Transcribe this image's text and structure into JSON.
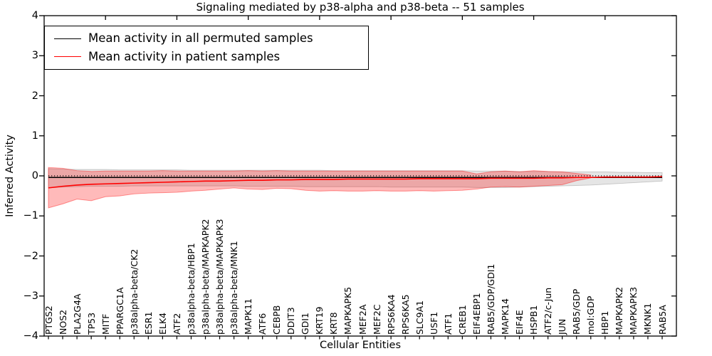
{
  "title": "Signaling mediated by p38-alpha and p38-beta -- 51 samples",
  "axes": {
    "ylabel": "Inferred Activity",
    "xlabel": "Cellular Entities",
    "ytick_values": [
      4,
      3,
      2,
      1,
      0,
      -1,
      -2,
      -3,
      -4
    ],
    "ytick_labels": [
      "4",
      "3",
      "2",
      "1",
      "0",
      "−1",
      "−2",
      "−3",
      "−4"
    ]
  },
  "legend": {
    "items": [
      {
        "label": "Mean activity in all permuted samples",
        "color": "#000000"
      },
      {
        "label": "Mean activity in patient samples",
        "color": "#ff0000"
      }
    ]
  },
  "chart_data": {
    "type": "line",
    "title": "Signaling mediated by p38-alpha and p38-beta -- 51 samples",
    "xlabel": "Cellular Entities",
    "ylabel": "Inferred Activity",
    "ylim": [
      -4,
      4
    ],
    "grid": false,
    "legend_position": "upper left",
    "categories": [
      "PTGS2",
      "NOS2",
      "PLA2G4A",
      "TP53",
      "MITF",
      "PPARGC1A",
      "p38alpha-beta/CK2",
      "ESR1",
      "ELK4",
      "ATF2",
      "p38alpha-beta/HBP1",
      "p38alpha-beta/MAPKAPK2",
      "p38alpha-beta/MAPKAPK3",
      "p38alpha-beta/MNK1",
      "MAPK11",
      "ATF6",
      "CEBPB",
      "DDIT3",
      "GDI1",
      "KRT19",
      "KRT8",
      "MAPKAPK5",
      "MEF2A",
      "MEF2C",
      "RPS6KA4",
      "RPS6KA5",
      "SLC9A1",
      "USF1",
      "ATF1",
      "CREB1",
      "EIF4EBP1",
      "RAB5/GDP/GDI1",
      "MAPK14",
      "EIF4E",
      "HSPB1",
      "ATF2/c-Jun",
      "JUN",
      "RAB5/GDP",
      "mol:GDP",
      "HBP1",
      "MAPKAPK2",
      "MAPKAPK3",
      "MKNK1",
      "RAB5A"
    ],
    "series": [
      {
        "name": "Mean activity in all permuted samples",
        "color": "#000000",
        "style": "solid",
        "width": 1.4,
        "constant_value": -0.04
      },
      {
        "name": "Mean activity in patient samples",
        "color": "#ff0000",
        "style": "solid",
        "width": 1.6,
        "values": [
          -0.3,
          -0.26,
          -0.23,
          -0.21,
          -0.2,
          -0.19,
          -0.18,
          -0.17,
          -0.16,
          -0.15,
          -0.14,
          -0.13,
          -0.13,
          -0.12,
          -0.11,
          -0.11,
          -0.1,
          -0.1,
          -0.09,
          -0.09,
          -0.09,
          -0.08,
          -0.08,
          -0.08,
          -0.08,
          -0.08,
          -0.07,
          -0.07,
          -0.07,
          -0.07,
          -0.07,
          -0.06,
          -0.06,
          -0.06,
          -0.06,
          -0.05,
          -0.05,
          -0.04,
          -0.04,
          -0.03,
          -0.03,
          -0.03,
          -0.03,
          -0.02
        ]
      }
    ],
    "ref_lines": [
      {
        "name": "zero-reference",
        "y": 0.0,
        "color": "#000000",
        "style": "dotted",
        "width": 1.3
      }
    ],
    "bands": [
      {
        "name": "permuted-samples-range",
        "fill": "#000000",
        "fill_opacity": 0.1,
        "edge": "#000000",
        "edge_opacity": 0.18,
        "upper": [
          0.18,
          0.17,
          0.16,
          0.16,
          0.16,
          0.15,
          0.15,
          0.15,
          0.15,
          0.15,
          0.14,
          0.14,
          0.14,
          0.14,
          0.14,
          0.14,
          0.14,
          0.14,
          0.14,
          0.14,
          0.13,
          0.13,
          0.13,
          0.13,
          0.13,
          0.13,
          0.13,
          0.13,
          0.13,
          0.13,
          0.12,
          0.12,
          0.12,
          0.11,
          0.11,
          0.11,
          0.1,
          0.1,
          0.1,
          0.1,
          0.09,
          0.09,
          0.08,
          0.08
        ],
        "lower": [
          -0.3,
          -0.28,
          -0.27,
          -0.26,
          -0.26,
          -0.26,
          -0.25,
          -0.25,
          -0.25,
          -0.25,
          -0.25,
          -0.25,
          -0.25,
          -0.25,
          -0.26,
          -0.26,
          -0.26,
          -0.26,
          -0.27,
          -0.27,
          -0.27,
          -0.27,
          -0.27,
          -0.27,
          -0.28,
          -0.28,
          -0.28,
          -0.28,
          -0.28,
          -0.28,
          -0.29,
          -0.29,
          -0.29,
          -0.28,
          -0.27,
          -0.26,
          -0.25,
          -0.24,
          -0.23,
          -0.21,
          -0.19,
          -0.17,
          -0.15,
          -0.13
        ]
      },
      {
        "name": "patient-samples-range",
        "fill": "#ff0000",
        "fill_opacity": 0.27,
        "edge": "#ff0000",
        "edge_opacity": 0.4,
        "upper": [
          0.21,
          0.19,
          0.13,
          0.11,
          0.12,
          0.12,
          0.12,
          0.12,
          0.13,
          0.12,
          0.12,
          0.12,
          0.12,
          0.12,
          0.13,
          0.12,
          0.13,
          0.12,
          0.12,
          0.12,
          0.12,
          0.12,
          0.12,
          0.12,
          0.12,
          0.12,
          0.12,
          0.12,
          0.12,
          0.12,
          0.05,
          0.1,
          0.12,
          0.1,
          0.13,
          0.11,
          0.1,
          0.06,
          0.02,
          null,
          null,
          null,
          null,
          null
        ],
        "lower": [
          -0.8,
          -0.7,
          -0.58,
          -0.62,
          -0.52,
          -0.5,
          -0.45,
          -0.43,
          -0.42,
          -0.41,
          -0.38,
          -0.36,
          -0.33,
          -0.3,
          -0.33,
          -0.34,
          -0.31,
          -0.32,
          -0.36,
          -0.38,
          -0.37,
          -0.38,
          -0.38,
          -0.37,
          -0.38,
          -0.38,
          -0.37,
          -0.38,
          -0.37,
          -0.36,
          -0.33,
          -0.28,
          -0.27,
          -0.28,
          -0.26,
          -0.24,
          -0.22,
          -0.12,
          -0.05,
          null,
          null,
          null,
          null,
          null
        ]
      }
    ]
  }
}
